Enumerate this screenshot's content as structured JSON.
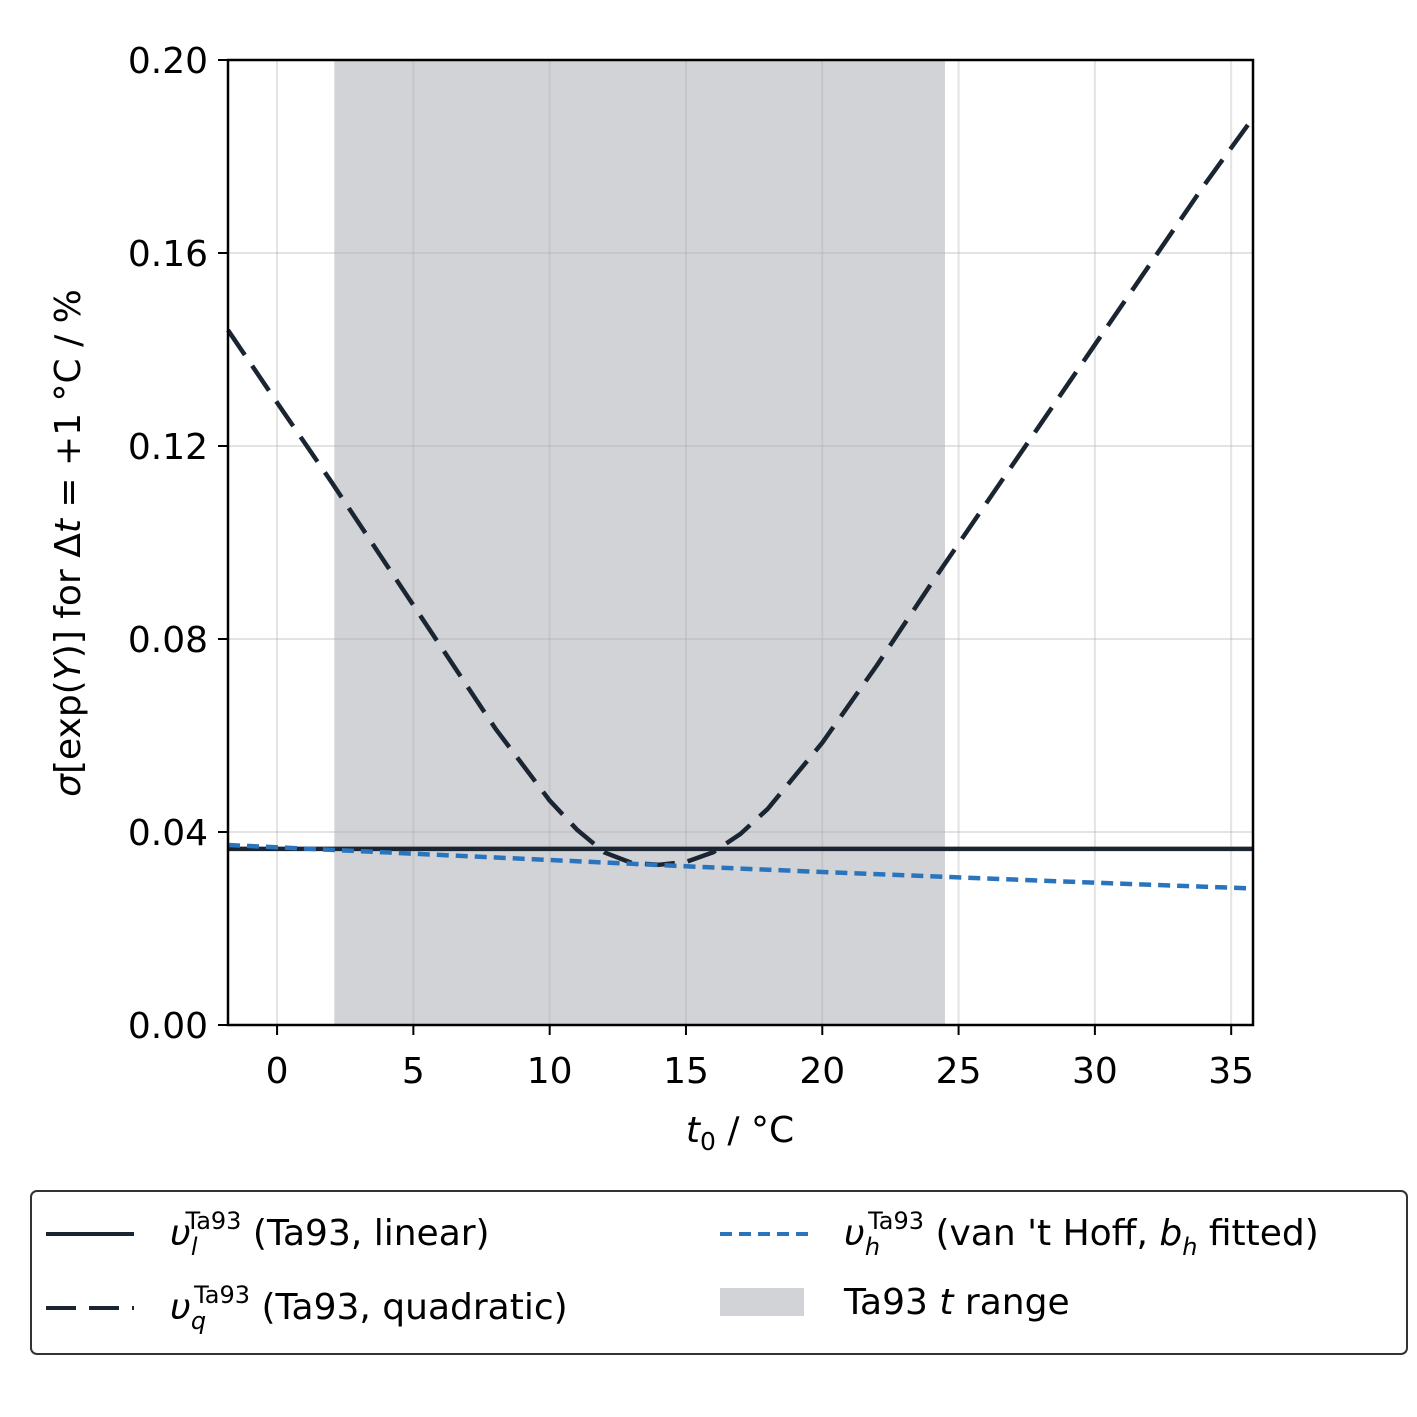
{
  "chart_data": {
    "type": "line",
    "xlabel": "t0 / °C",
    "ylabel": "σ[exp(Y)] for Δt = +1 °C / %",
    "xlim": [
      -1.8,
      35.8
    ],
    "ylim": [
      0.0,
      0.2
    ],
    "xticks": [
      "0",
      "5",
      "10",
      "15",
      "20",
      "25",
      "30",
      "35"
    ],
    "yticks": [
      "0.00",
      "0.04",
      "0.08",
      "0.12",
      "0.16",
      "0.20"
    ],
    "grid": true,
    "shaded_range": {
      "label": "Ta93 t range",
      "x": [
        2.1,
        24.5
      ],
      "color": "#d1d3d6"
    },
    "series": [
      {
        "name": "υl Ta93 (Ta93, linear)",
        "style": "solid",
        "color": "#1b2532",
        "x": [
          -1.8,
          35.8
        ],
        "y": [
          0.0365,
          0.0365
        ]
      },
      {
        "name": "υq Ta93 (Ta93, quadratic)",
        "style": "dashed",
        "color": "#1b2532",
        "x": [
          -1.8,
          0,
          2,
          4,
          6,
          8,
          10,
          11,
          12,
          13,
          14,
          15,
          16,
          17,
          18,
          20,
          22,
          24,
          26,
          28,
          30,
          32,
          34,
          35.8
        ],
        "y": [
          0.144,
          0.129,
          0.1125,
          0.0955,
          0.0785,
          0.0615,
          0.0465,
          0.0405,
          0.0358,
          0.0336,
          0.0332,
          0.0338,
          0.0358,
          0.0396,
          0.0448,
          0.0585,
          0.0745,
          0.0915,
          0.108,
          0.1245,
          0.141,
          0.1575,
          0.174,
          0.188
        ]
      },
      {
        "name": "υh Ta93 (van 't Hoff, bh fitted)",
        "style": "dotted",
        "color": "#2a74bd",
        "x": [
          -1.8,
          5,
          10,
          15,
          20,
          25,
          30,
          35.8
        ],
        "y": [
          0.0373,
          0.0355,
          0.0342,
          0.0329,
          0.0317,
          0.0306,
          0.0295,
          0.0283
        ]
      }
    ]
  },
  "legend": {
    "linear": {
      "sym": "υ",
      "sub": "l",
      "sup": "Ta93",
      "rest": " (Ta93, linear)"
    },
    "quadratic": {
      "sym": "υ",
      "sub": "q",
      "sup": "Ta93",
      "rest": " (Ta93, quadratic)"
    },
    "vanthoff": {
      "sym": "υ",
      "sub": "h",
      "sup": "Ta93",
      "rest_a": " (van 't Hoff, ",
      "bsym": "b",
      "bsub": "h",
      "rest_b": " fitted)"
    },
    "range": {
      "pre": "Ta93 ",
      "t": "t",
      "post": " range"
    }
  }
}
